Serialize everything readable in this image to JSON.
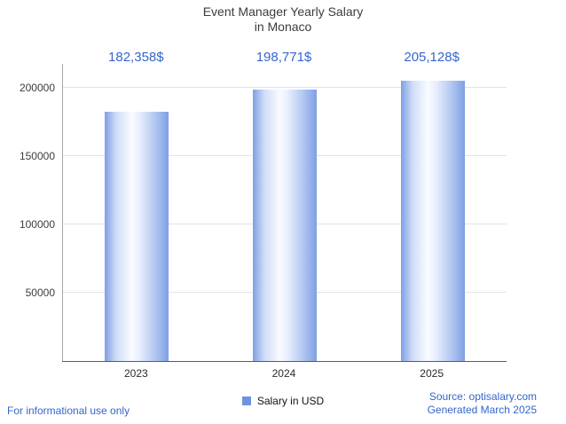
{
  "title": {
    "line1": "Event Manager Yearly Salary",
    "line2": "in Monaco"
  },
  "chart_data": {
    "type": "bar",
    "title": "Event Manager Yearly Salary in Monaco",
    "categories": [
      "2023",
      "2024",
      "2025"
    ],
    "series": [
      {
        "name": "Salary in USD",
        "values": [
          182358,
          198771,
          205128
        ]
      }
    ],
    "values": [
      182358,
      198771,
      205128
    ],
    "value_labels": [
      "182,358$",
      "198,771$",
      "205,128$"
    ],
    "xlabel": "",
    "ylabel": "",
    "ylim": [
      0,
      217500
    ],
    "yticks": [
      50000,
      100000,
      150000,
      200000
    ],
    "grid": true,
    "legend_position": "bottom"
  },
  "legend": {
    "label": "Salary in USD"
  },
  "footer": {
    "left": "For informational use only",
    "source": "Source: optisalary.com",
    "generated": "Generated March 2025"
  },
  "colors": {
    "accent_blue": "#3366cc",
    "bar_edge": "#7f9fe4",
    "bar_center": "#f9fbff",
    "legend_swatch": "#6d93dc",
    "gridline": "#e3e3e3",
    "axis": "#a6a6a6"
  }
}
